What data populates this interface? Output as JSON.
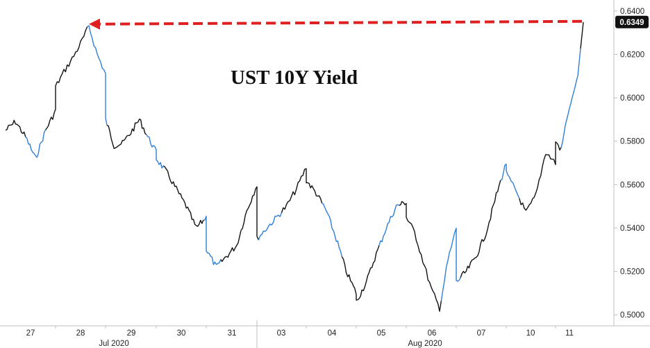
{
  "chart_data": {
    "type": "line",
    "title": "UST 10Y Yield",
    "ylim": [
      0.4975,
      0.6425
    ],
    "y_ticks": [
      "0.5000",
      "0.5200",
      "0.5400",
      "0.5600",
      "0.5800",
      "0.6000",
      "0.6200",
      "0.6400"
    ],
    "x_ticks": [
      "27",
      "28",
      "29",
      "30",
      "31",
      "03",
      "04",
      "05",
      "06",
      "07",
      "10",
      "11"
    ],
    "month_labels": [
      "Jul 2020",
      "Aug 2020"
    ],
    "last_value_label": "0.6349",
    "grid": false,
    "colors": {
      "line_dark": "#111111",
      "line_blue": "#2f7ed8",
      "annotation": "#e02020",
      "label_bg": "#111111"
    },
    "series": [
      {
        "x": [
          "07-27",
          "07-27",
          "07-27",
          "07-27",
          "07-27",
          "07-27",
          "07-28",
          "07-28",
          "07-28",
          "07-28",
          "07-28",
          "07-28",
          "07-28",
          "07-29",
          "07-29",
          "07-29",
          "07-29",
          "07-29",
          "07-29",
          "07-29",
          "07-30",
          "07-30",
          "07-30",
          "07-30",
          "07-30",
          "07-30",
          "07-31",
          "07-31",
          "07-31",
          "07-31",
          "07-31",
          "07-31",
          "08-03",
          "08-03",
          "08-03",
          "08-03",
          "08-03",
          "08-03",
          "08-04",
          "08-04",
          "08-04",
          "08-04",
          "08-04",
          "08-04",
          "08-05",
          "08-05",
          "08-05",
          "08-05",
          "08-05",
          "08-05",
          "08-06",
          "08-06",
          "08-06",
          "08-06",
          "08-06",
          "08-06",
          "08-06",
          "08-07",
          "08-07",
          "08-07",
          "08-07",
          "08-07",
          "08-07",
          "08-10",
          "08-10",
          "08-10",
          "08-10",
          "08-10",
          "08-10",
          "08-11",
          "08-11",
          "08-11",
          "08-11",
          "08-11",
          "08-11"
        ],
        "values": [
          0.585,
          0.589,
          0.582,
          0.572,
          0.585,
          0.594,
          0.605,
          0.612,
          0.618,
          0.625,
          0.633,
          0.62,
          0.611,
          0.59,
          0.578,
          0.579,
          0.584,
          0.59,
          0.582,
          0.575,
          0.572,
          0.566,
          0.558,
          0.55,
          0.54,
          0.545,
          0.53,
          0.522,
          0.527,
          0.532,
          0.548,
          0.56,
          0.535,
          0.54,
          0.545,
          0.55,
          0.558,
          0.568,
          0.562,
          0.556,
          0.548,
          0.535,
          0.52,
          0.51,
          0.506,
          0.515,
          0.528,
          0.54,
          0.55,
          0.552,
          0.545,
          0.538,
          0.525,
          0.512,
          0.503,
          0.525,
          0.54,
          0.515,
          0.52,
          0.527,
          0.538,
          0.555,
          0.57,
          0.565,
          0.557,
          0.547,
          0.555,
          0.575,
          0.57,
          0.58,
          0.576,
          0.59,
          0.6,
          0.61,
          0.6349
        ]
      }
    ]
  }
}
